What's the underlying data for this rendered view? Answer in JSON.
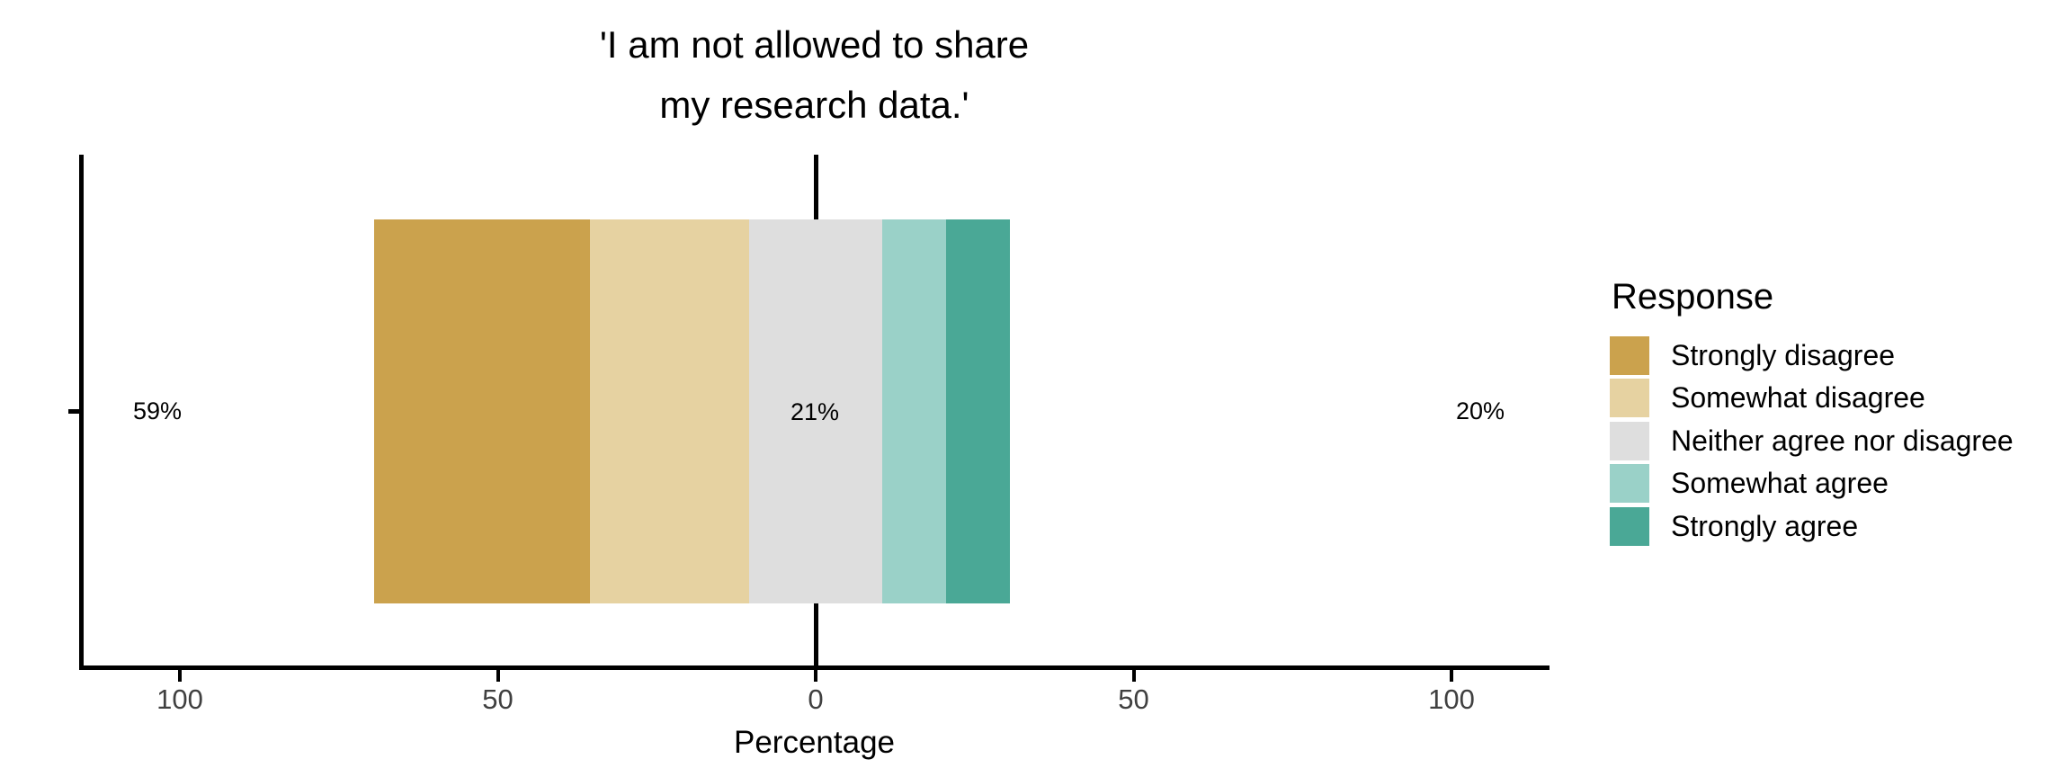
{
  "title": {
    "line1": "'I am not allowed to share",
    "line2": "my research data.'"
  },
  "x_axis": {
    "label": "Percentage"
  },
  "annotations": {
    "disagree_total": "59%",
    "neutral_total": "21%",
    "agree_total": "20%"
  },
  "legend": {
    "title": "Response"
  },
  "colors": {
    "background": "#FFFFFF",
    "axis_line": "#000000",
    "tick_label_text": "#404040",
    "text": "#000000"
  },
  "chart_data": {
    "type": "bar",
    "subtype": "diverging-stacked-likert",
    "title": "'I am not allowed to share my research data.'",
    "xlabel": "Percentage",
    "orientation": "horizontal",
    "neutral_centered_at_zero": true,
    "xlim": [
      -116,
      115
    ],
    "x_ticks": [
      {
        "value": -100,
        "label": "100"
      },
      {
        "value": -50,
        "label": "50"
      },
      {
        "value": 0,
        "label": "0"
      },
      {
        "value": 50,
        "label": "50"
      },
      {
        "value": 100,
        "label": "100"
      }
    ],
    "series": [
      {
        "name": "Strongly disagree",
        "value": 34,
        "color": "#CBA24D"
      },
      {
        "name": "Somewhat disagree",
        "value": 25,
        "color": "#E6D2A1"
      },
      {
        "name": "Neither agree nor disagree",
        "value": 21,
        "color": "#DEDEDE"
      },
      {
        "name": "Somewhat agree",
        "value": 10,
        "color": "#9AD1C8"
      },
      {
        "name": "Strongly agree",
        "value": 10,
        "color": "#4AA896"
      }
    ],
    "totals": {
      "disagree": 59,
      "neither": 21,
      "agree": 20
    },
    "legend_title": "Response",
    "legend_position": "right"
  }
}
